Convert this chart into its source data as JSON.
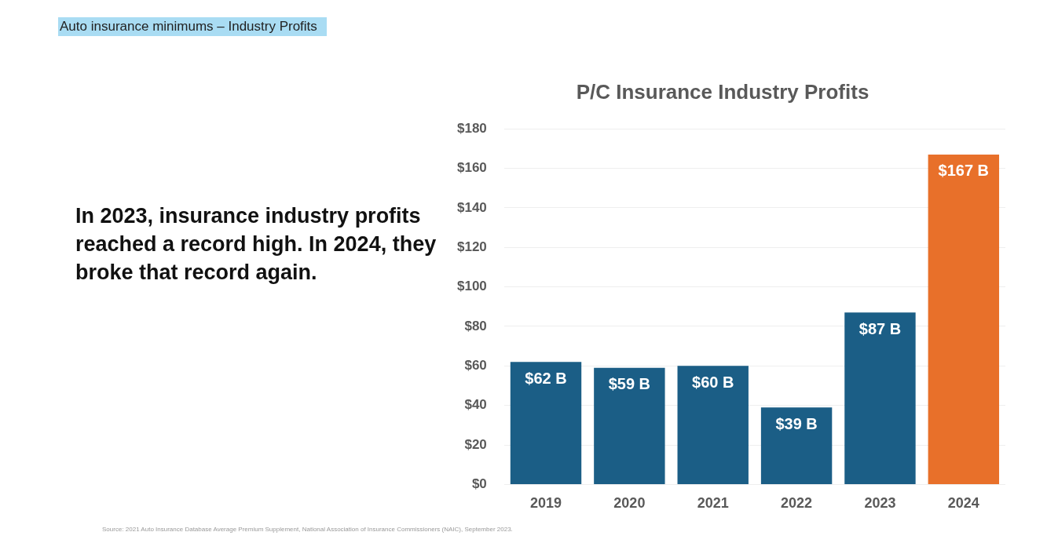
{
  "chart_data": {
    "type": "bar",
    "title": "P/C Insurance Industry Profits",
    "subtitle": "Auto insurance minimums – Industry Profits",
    "categories": [
      "2019",
      "2020",
      "2021",
      "2022",
      "2023",
      "2024"
    ],
    "values": [
      62,
      59,
      60,
      39,
      87,
      167
    ],
    "colors": [
      "#1b5e86",
      "#1b5e86",
      "#1b5e86",
      "#1b5e86",
      "#1b5e86",
      "#e8702a"
    ],
    "value_labels": [
      "$62 B",
      "$59 B",
      "$60 B",
      "$39 B",
      "$87 B",
      "$167 B"
    ],
    "ylim": [
      0,
      180
    ],
    "yticks": [
      {
        "value": 0,
        "label": "$0"
      },
      {
        "value": 20,
        "label": "$20"
      },
      {
        "value": 40,
        "label": "$40"
      },
      {
        "value": 60,
        "label": "$60"
      },
      {
        "value": 80,
        "label": "$80"
      },
      {
        "value": 100,
        "label": "$100"
      },
      {
        "value": 120,
        "label": "$120"
      },
      {
        "value": 140,
        "label": "$140"
      },
      {
        "value": 160,
        "label": "$160"
      },
      {
        "value": 180,
        "label": "$180"
      }
    ],
    "grid": "y",
    "legend": false,
    "annotations": [
      "In 2023, insurance industry profits reached a record high. In 2024, they broke that record again.",
      "Source: 2021 Auto Insurance Database Average Premium Supplement, National Association of Insurance Commissioners (NAIC), September 2023."
    ]
  }
}
